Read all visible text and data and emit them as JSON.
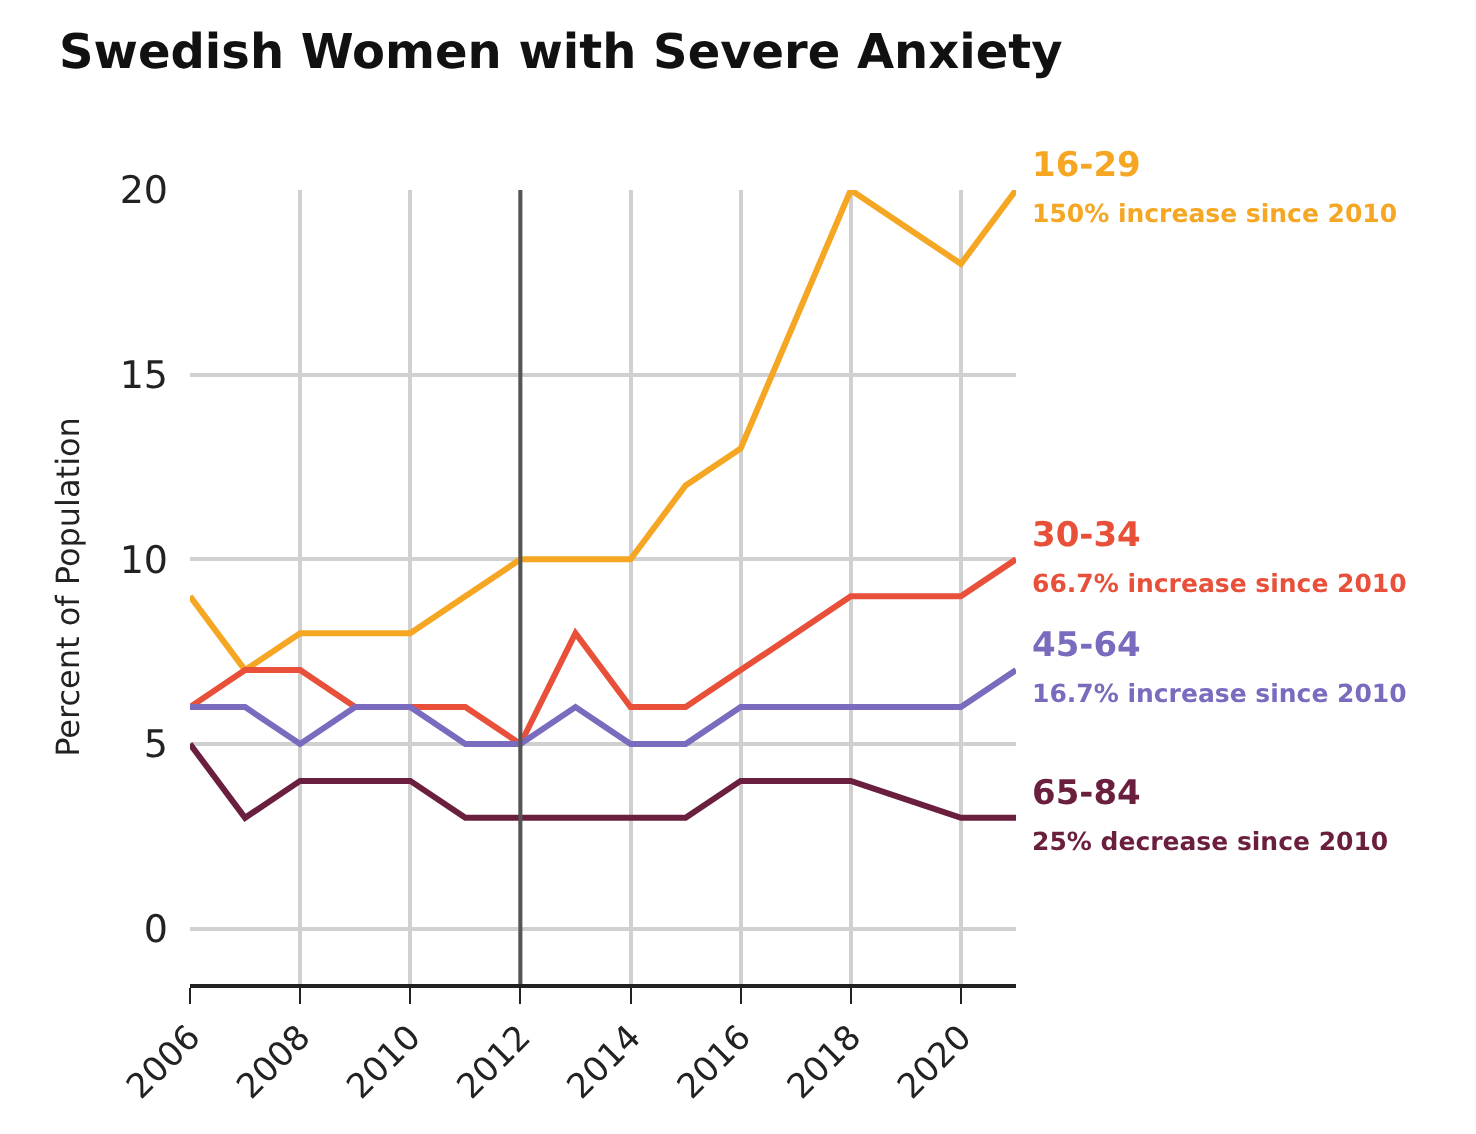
{
  "chart_data": {
    "type": "line",
    "title": "Swedish Women with Severe Anxiety",
    "ylabel": "Percent of Population",
    "x": [
      2006,
      2007,
      2008,
      2009,
      2010,
      2011,
      2012,
      2013,
      2014,
      2015,
      2016,
      2017,
      2018,
      2019,
      2020,
      2021
    ],
    "series": [
      {
        "name": "16-29",
        "color": "#f5a623",
        "values": [
          9,
          7,
          8,
          8,
          8,
          9,
          10,
          10,
          10,
          12,
          13,
          16.5,
          20,
          19,
          18,
          20
        ]
      },
      {
        "name": "30-34",
        "color": "#e8503a",
        "values": [
          6,
          7,
          7,
          6,
          6,
          6,
          5,
          8,
          6,
          6,
          7,
          8,
          9,
          9,
          9,
          10
        ]
      },
      {
        "name": "45-64",
        "color": "#7b6bbf",
        "values": [
          6,
          6,
          5,
          6,
          6,
          5,
          5,
          6,
          5,
          5,
          6,
          6,
          6,
          6,
          6,
          7
        ]
      },
      {
        "name": "65-84",
        "color": "#6b1f3f",
        "values": [
          5,
          3,
          4,
          4,
          4,
          3,
          3,
          3,
          3,
          3,
          4,
          4,
          4,
          3.5,
          3,
          3
        ]
      }
    ],
    "annotations": [
      "150% increase since 2010",
      "66.7% increase since 2010",
      "16.7% increase since 2010",
      "25% decrease since 2010"
    ],
    "ref_lines": [
      {
        "axis": "x",
        "value": 2012,
        "color": "#555555"
      }
    ],
    "xlim": [
      2006,
      2021
    ],
    "xticks": [
      2006,
      2008,
      2010,
      2012,
      2014,
      2016,
      2018,
      2020
    ],
    "ylim": [
      -1.5,
      20
    ],
    "yticks": [
      0,
      5,
      10,
      15,
      20
    ],
    "grid": true,
    "legend": false,
    "marker": "none",
    "line_style": "solid"
  }
}
